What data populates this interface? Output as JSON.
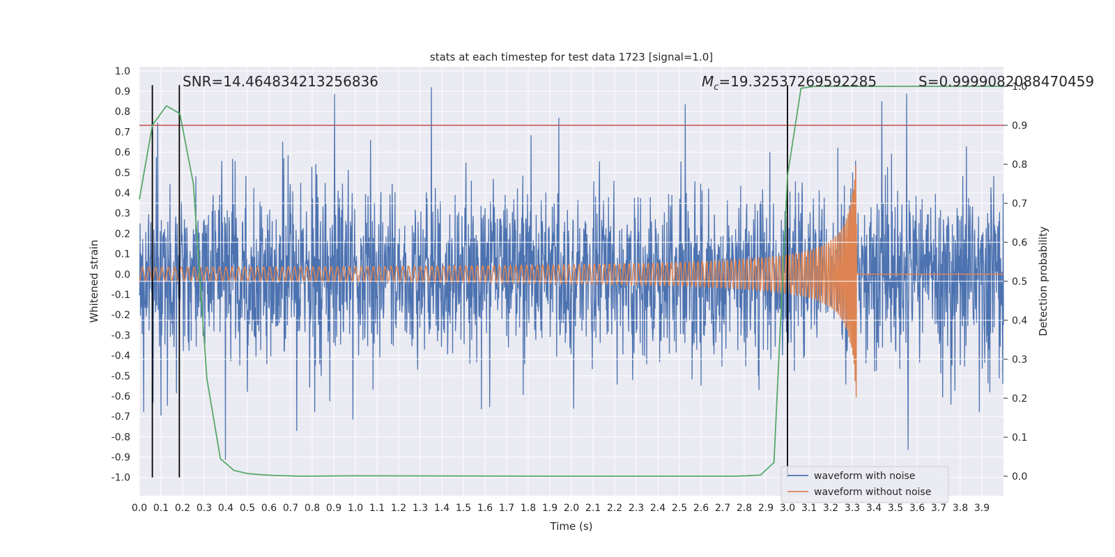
{
  "chart_data": {
    "type": "line",
    "title": "stats at each timestep for test data 1723 [signal=1.0]",
    "xlabel": "Time (s)",
    "ylabel_left": "Whitened strain",
    "ylabel_right": "Detection probability",
    "xlim": [
      0.0,
      4.0
    ],
    "ylim_left": [
      -1.09,
      1.02
    ],
    "ylim_right": [
      -0.05,
      1.05
    ],
    "x_ticks": [
      "0.0",
      "0.1",
      "0.2",
      "0.3",
      "0.4",
      "0.5",
      "0.6",
      "0.7",
      "0.8",
      "0.9",
      "1.0",
      "1.1",
      "1.2",
      "1.3",
      "1.4",
      "1.5",
      "1.6",
      "1.7",
      "1.8",
      "1.9",
      "2.0",
      "2.1",
      "2.2",
      "2.3",
      "2.4",
      "2.5",
      "2.6",
      "2.7",
      "2.8",
      "2.9",
      "3.0",
      "3.1",
      "3.2",
      "3.3",
      "3.4",
      "3.5",
      "3.6",
      "3.7",
      "3.8",
      "3.9"
    ],
    "y_ticks_left": [
      "1.0",
      "0.9",
      "0.8",
      "0.7",
      "0.6",
      "0.5",
      "0.4",
      "0.3",
      "0.2",
      "0.1",
      "0.0",
      "-0.1",
      "-0.2",
      "-0.3",
      "-0.4",
      "-0.5",
      "-0.6",
      "-0.7",
      "-0.8",
      "-0.9",
      "-1.0"
    ],
    "y_ticks_right": [
      "1.0",
      "0.9",
      "0.8",
      "0.7",
      "0.6",
      "0.5",
      "0.4",
      "0.3",
      "0.2",
      "0.1",
      "0.0"
    ],
    "annotations": {
      "snr": "SNR=14.464834213256836",
      "mc": "=19.32537269592285",
      "mc_symbol": "M",
      "mc_sub": "c",
      "s": "S=0.9999082088470459"
    },
    "legend": {
      "position": "lower-right",
      "entries": [
        "waveform with noise",
        "waveform without noise"
      ]
    },
    "series": [
      {
        "name": "waveform with noise",
        "color": "#4c72b0",
        "axis": "left",
        "description": "whitened noisy strain, amplitude mostly within ±0.5 with spikes to ±0.9"
      },
      {
        "name": "waveform without noise",
        "color": "#dd8452",
        "axis": "left",
        "description": "chirp signal, amplitude grows to ~0.65 at merger near t=3.32 s, then ~0"
      },
      {
        "name": "detection probability",
        "color": "#55a868",
        "axis": "right",
        "x": [
          0.0,
          0.06,
          0.125,
          0.1875,
          0.25,
          0.3125,
          0.375,
          0.4375,
          0.5,
          0.5625,
          0.625,
          0.6875,
          0.75,
          1.0,
          2.0,
          2.5,
          2.75,
          2.8125,
          2.875,
          2.9375,
          3.0,
          3.0625,
          3.125,
          4.0
        ],
        "y": [
          0.71,
          0.9,
          0.95,
          0.93,
          0.75,
          0.25,
          0.045,
          0.015,
          0.007,
          0.004,
          0.002,
          0.001,
          0.0,
          0.001,
          0.0,
          0.0,
          0.0,
          0.001,
          0.003,
          0.035,
          0.77,
          0.995,
          1.0,
          1.0
        ]
      }
    ],
    "threshold": {
      "value": 0.9,
      "axis": "right",
      "color": "#c44e52"
    },
    "vertical_markers": [
      0.06,
      0.185,
      3.0
    ]
  }
}
